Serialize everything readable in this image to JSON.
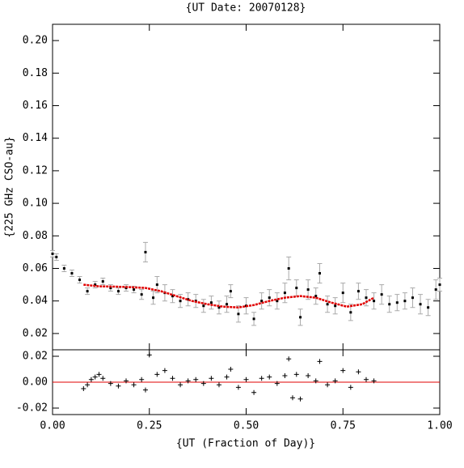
{
  "chart_data": [
    {
      "type": "scatter",
      "title": "{UT Date: 20070128}",
      "ylabel": "{225 GHz CSO-au}",
      "xlim": [
        0,
        1
      ],
      "xticks": [
        0,
        0.25,
        0.5,
        0.75,
        1
      ],
      "ylim": [
        0.01,
        0.21
      ],
      "yticks": [
        0.02,
        0.04,
        0.06,
        0.08,
        {
          "value": 0.1,
          "label": "0.10"
        },
        0.12,
        0.14,
        0.16,
        0.18,
        {
          "value": 0.2,
          "label": "0.20"
        }
      ],
      "series": [
        {
          "color": "#000000",
          "x": [
            0,
            0.01,
            0.03,
            0.05,
            0.07,
            0.09,
            0.11,
            0.13,
            0.15,
            0.17,
            0.19,
            0.21,
            0.23,
            0.24,
            0.26,
            0.27,
            0.29,
            0.31,
            0.33,
            0.35,
            0.37,
            0.39,
            0.41,
            0.43,
            0.45,
            0.46,
            0.48,
            0.5,
            0.52,
            0.54,
            0.56,
            0.58,
            0.6,
            0.61,
            0.63,
            0.64,
            0.66,
            0.68,
            0.69,
            0.71,
            0.73,
            0.75,
            0.77,
            0.79,
            0.81,
            0.83,
            0.85,
            0.87,
            0.89,
            0.91,
            0.93,
            0.95,
            0.97,
            0.99,
            1
          ],
          "values": [
            0.069,
            0.067,
            0.06,
            0.057,
            0.053,
            0.046,
            0.05,
            0.052,
            0.048,
            0.046,
            0.048,
            0.047,
            0.044,
            0.07,
            0.042,
            0.05,
            0.045,
            0.043,
            0.04,
            0.041,
            0.04,
            0.037,
            0.039,
            0.036,
            0.038,
            0.046,
            0.032,
            0.037,
            0.029,
            0.04,
            0.042,
            0.04,
            0.045,
            0.06,
            0.048,
            0.03,
            0.047,
            0.043,
            0.057,
            0.038,
            0.037,
            0.045,
            0.033,
            0.046,
            0.042,
            0.04,
            0.044,
            0.038,
            0.039,
            0.04,
            0.042,
            0.038,
            0.036,
            0.047,
            0.05
          ],
          "errors": [
            0.002,
            0.002,
            0.002,
            0.002,
            0.002,
            0.002,
            0.002,
            0.002,
            0.002,
            0.002,
            0.002,
            0.002,
            0.003,
            0.006,
            0.004,
            0.005,
            0.005,
            0.004,
            0.004,
            0.004,
            0.004,
            0.004,
            0.004,
            0.004,
            0.005,
            0.004,
            0.005,
            0.005,
            0.004,
            0.005,
            0.005,
            0.005,
            0.006,
            0.007,
            0.005,
            0.005,
            0.006,
            0.005,
            0.006,
            0.005,
            0.005,
            0.006,
            0.005,
            0.005,
            0.005,
            0.005,
            0.006,
            0.005,
            0.005,
            0.005,
            0.006,
            0.006,
            0.005,
            0.006,
            0.004
          ]
        },
        {
          "color": "#e00000",
          "line": true,
          "x": [
            0.08,
            0.12,
            0.16,
            0.2,
            0.24,
            0.28,
            0.32,
            0.36,
            0.4,
            0.44,
            0.48,
            0.52,
            0.56,
            0.6,
            0.64,
            0.68,
            0.72,
            0.76,
            0.8,
            0.83
          ],
          "values": [
            0.05,
            0.049,
            0.0488,
            0.0485,
            0.048,
            0.046,
            0.043,
            0.04,
            0.038,
            0.0365,
            0.036,
            0.0375,
            0.04,
            0.042,
            0.043,
            0.042,
            0.039,
            0.0365,
            0.038,
            0.042
          ]
        }
      ]
    },
    {
      "type": "scatter",
      "xlabel": "{UT (Fraction of Day)}",
      "xlim": [
        0,
        1
      ],
      "xticks": [
        {
          "value": 0,
          "label": "0.00"
        },
        {
          "value": 0.25,
          "label": "0.25"
        },
        {
          "value": 0.5,
          "label": "0.50"
        },
        {
          "value": 0.75,
          "label": "0.75"
        },
        {
          "value": 1,
          "label": "1.00"
        }
      ],
      "ylim": [
        -0.025,
        0.025
      ],
      "yticks": [
        -0.02,
        {
          "value": 0,
          "label": "0.00"
        },
        0.02
      ],
      "hline": 0,
      "hline_color": "#e00000",
      "series": [
        {
          "color": "#000000",
          "x": [
            0.08,
            0.09,
            0.1,
            0.11,
            0.12,
            0.13,
            0.15,
            0.17,
            0.19,
            0.21,
            0.23,
            0.24,
            0.25,
            0.27,
            0.29,
            0.31,
            0.33,
            0.35,
            0.37,
            0.39,
            0.41,
            0.43,
            0.45,
            0.46,
            0.48,
            0.5,
            0.52,
            0.54,
            0.56,
            0.58,
            0.6,
            0.61,
            0.62,
            0.63,
            0.64,
            0.66,
            0.68,
            0.69,
            0.71,
            0.73,
            0.75,
            0.77,
            0.79,
            0.81,
            0.83
          ],
          "values": [
            -0.005,
            -0.002,
            0.002,
            0.004,
            0.006,
            0.003,
            -0.001,
            -0.003,
            0.001,
            -0.002,
            0.002,
            -0.006,
            0.021,
            0.006,
            0.009,
            0.003,
            -0.002,
            0.001,
            0.002,
            -0.001,
            0.003,
            -0.002,
            0.004,
            0.01,
            -0.004,
            0.002,
            -0.008,
            0.003,
            0.004,
            -0.001,
            0.005,
            0.018,
            -0.012,
            0.006,
            -0.013,
            0.005,
            0.001,
            0.016,
            -0.002,
            0.001,
            0.009,
            -0.004,
            0.008,
            0.002,
            0.001
          ]
        }
      ]
    }
  ]
}
